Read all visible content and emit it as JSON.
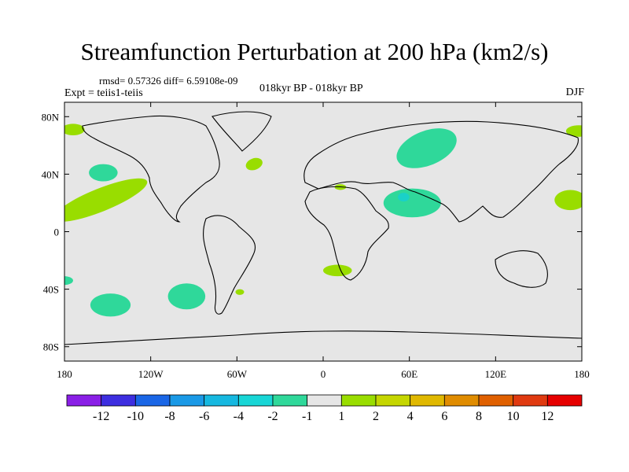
{
  "title": "Streamfunction Perturbation at 200 hPa (km2/s)",
  "stats": "rmsd= 0.57326  diff= 6.59108e-09",
  "experiment": "Expt = teiis1-teiis",
  "comparison": "018kyr BP - 018kyr BP",
  "season": "DJF",
  "map": {
    "background_color": "#e6e6e6",
    "lon_range": [
      -180,
      180
    ],
    "lat_range": [
      -90,
      90
    ],
    "lon_ticks": [
      {
        "value": -180,
        "label": "180"
      },
      {
        "value": -120,
        "label": "120W"
      },
      {
        "value": -60,
        "label": "60W"
      },
      {
        "value": 0,
        "label": "0"
      },
      {
        "value": 60,
        "label": "60E"
      },
      {
        "value": 120,
        "label": "120E"
      },
      {
        "value": 180,
        "label": "180"
      }
    ],
    "lat_ticks": [
      {
        "value": 80,
        "label": "80N"
      },
      {
        "value": 40,
        "label": "40N"
      },
      {
        "value": 0,
        "label": "0"
      },
      {
        "value": -40,
        "label": "40S"
      },
      {
        "value": -80,
        "label": "80S"
      }
    ],
    "anomalies": [
      {
        "lon": 72,
        "lat": 58,
        "rx": 22,
        "ry": 12,
        "rot": -22,
        "level": "-1 to -2",
        "color": "#2fd89a"
      },
      {
        "lon": 62,
        "lat": 20,
        "rx": 20,
        "ry": 10,
        "rot": 0,
        "level": "-1 to -2",
        "color": "#2fd89a"
      },
      {
        "lon": 56,
        "lat": 24,
        "rx": 4,
        "ry": 3,
        "rot": 0,
        "level": "-2 to -4",
        "color": "#1ad1c8"
      },
      {
        "lon": -153,
        "lat": 41,
        "rx": 10,
        "ry": 6,
        "rot": 0,
        "level": "-1 to -2",
        "color": "#2fd89a"
      },
      {
        "lon": -148,
        "lat": -51,
        "rx": 14,
        "ry": 8,
        "rot": 0,
        "level": "-1 to -2",
        "color": "#2fd89a"
      },
      {
        "lon": -95,
        "lat": -45,
        "rx": 13,
        "ry": 9,
        "rot": 0,
        "level": "-1 to -2",
        "color": "#2fd89a"
      },
      {
        "lon": -180,
        "lat": -34,
        "rx": 6,
        "ry": 3,
        "rot": 0,
        "level": "-1 to -2",
        "color": "#2fd89a"
      },
      {
        "lon": -155,
        "lat": 22,
        "rx": 35,
        "ry": 8,
        "rot": -22,
        "level": "1 to 2",
        "color": "#99dd00"
      },
      {
        "lon": -174,
        "lat": 71,
        "rx": 8,
        "ry": 4,
        "rot": 0,
        "level": "1 to 2",
        "color": "#99dd00"
      },
      {
        "lon": 178,
        "lat": 70,
        "rx": 9,
        "ry": 4,
        "rot": 0,
        "level": "1 to 2",
        "color": "#99dd00"
      },
      {
        "lon": 172,
        "lat": 22,
        "rx": 11,
        "ry": 7,
        "rot": 0,
        "level": "1 to 2",
        "color": "#99dd00"
      },
      {
        "lon": -48,
        "lat": 47,
        "rx": 6,
        "ry": 4,
        "rot": -20,
        "level": "1 to 2",
        "color": "#99dd00"
      },
      {
        "lon": 10,
        "lat": -27,
        "rx": 10,
        "ry": 4,
        "rot": 0,
        "level": "1 to 2",
        "color": "#99dd00"
      },
      {
        "lon": 12,
        "lat": 31,
        "rx": 4,
        "ry": 2,
        "rot": 0,
        "level": "1 to 2",
        "color": "#99dd00"
      },
      {
        "lon": -58,
        "lat": -42,
        "rx": 3,
        "ry": 2,
        "rot": 0,
        "level": "1 to 2",
        "color": "#99dd00"
      }
    ]
  },
  "colorbar": {
    "colors": [
      "#8a1fe6",
      "#3d2ee0",
      "#1a66e6",
      "#1a99e6",
      "#16b8e0",
      "#18d6d6",
      "#2fd89a",
      "#e6e6e6",
      "#99dd00",
      "#c5d600",
      "#e0b800",
      "#e08c00",
      "#e06000",
      "#e03a10",
      "#e60000"
    ],
    "labels": [
      "-12",
      "-10",
      "-8",
      "-6",
      "-4",
      "-2",
      "-1",
      "1",
      "2",
      "4",
      "6",
      "8",
      "10",
      "12"
    ]
  }
}
